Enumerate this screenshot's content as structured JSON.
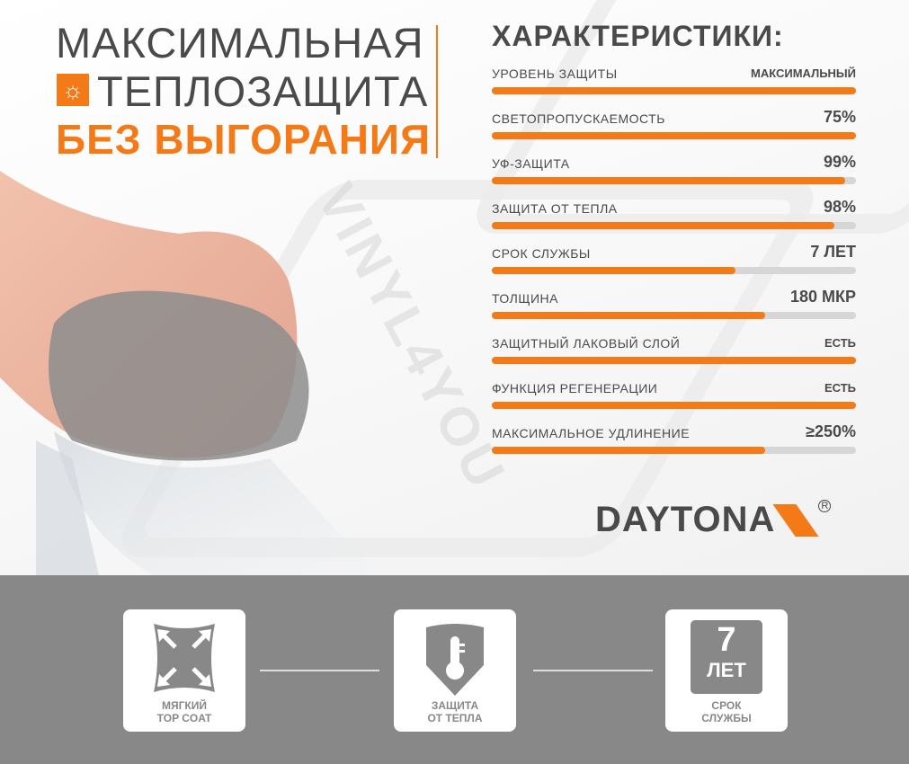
{
  "headline": {
    "line1": "МАКСИМАЛЬНАЯ",
    "line2": "ТЕПЛОЗАЩИТА",
    "line3": "БЕЗ ВЫГОРАНИЯ",
    "icon": "sun-half-icon"
  },
  "characteristics": {
    "title": "ХАРАКТЕРИСТИКИ:",
    "items": [
      {
        "label": "УРОВЕНЬ ЗАЩИТЫ",
        "value": "МАКСИМАЛЬНЫЙ",
        "fill_pct": 100
      },
      {
        "label": "СВЕТОПРОПУСКАЕМОСТЬ",
        "value": "75%",
        "fill_pct": 100
      },
      {
        "label": "УФ-ЗАЩИТА",
        "value": "99%",
        "fill_pct": 97
      },
      {
        "label": "ЗАЩИТА ОТ ТЕПЛА",
        "value": "98%",
        "fill_pct": 94
      },
      {
        "label": "СРОК СЛУЖБЫ",
        "value": "7 ЛЕТ",
        "fill_pct": 67
      },
      {
        "label": "ТОЛЩИНА",
        "value": "180 МКР",
        "fill_pct": 75
      },
      {
        "label": "ЗАЩИТНЫЙ ЛАКОВЫЙ СЛОЙ",
        "value": "ЕСТЬ",
        "fill_pct": 100
      },
      {
        "label": "ФУНКЦИЯ РЕГЕНЕРАЦИИ",
        "value": "ЕСТЬ",
        "fill_pct": 100
      },
      {
        "label": "МАКСИМАЛЬНОЕ УДЛИНЕНИЕ",
        "value": "≥250%",
        "fill_pct": 75
      }
    ]
  },
  "brand": {
    "logo": "DAYTONA",
    "watermark": "VINYL4YOU"
  },
  "features": [
    {
      "caption1": "МЯГКИЙ",
      "caption2": "TOP COAT",
      "icon": "stretch-arrows-icon"
    },
    {
      "caption1": "ЗАЩИТА",
      "caption2": "ОТ ТЕПЛА",
      "icon": "thermometer-shield-icon"
    },
    {
      "caption1": "СРОК",
      "caption2": "СЛУЖБЫ",
      "icon": "years-badge-icon",
      "badge_number": "7",
      "badge_unit": "ЛЕТ"
    }
  ],
  "colors": {
    "accent": "#f47a17",
    "text": "#4a4a4a",
    "track": "#d6d6d6",
    "bottom_bg": "#888888"
  }
}
